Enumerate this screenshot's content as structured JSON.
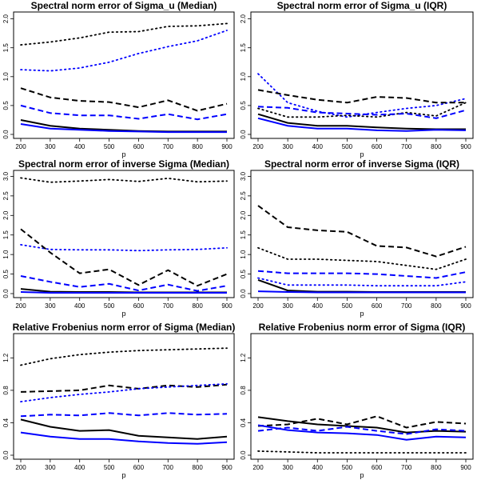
{
  "chart_data": [
    {
      "type": "line",
      "title": "Spectral norm error of Sigma_u (Median)",
      "xlabel": "p",
      "ylabel": "",
      "x": [
        200,
        300,
        400,
        500,
        600,
        700,
        800,
        900
      ],
      "xticks": [
        "200",
        "300",
        "400",
        "500",
        "600",
        "700",
        "800",
        "900"
      ],
      "ylim": [
        0,
        2.05
      ],
      "yticks": [
        "0.0",
        "0.5",
        "1.0",
        "1.5",
        "2.0"
      ],
      "ytick_values": [
        0,
        0.5,
        1.0,
        1.5,
        2.0
      ],
      "grid": false,
      "series": [
        {
          "color": "#000000",
          "dash": "dotted",
          "values": [
            1.55,
            1.6,
            1.67,
            1.77,
            1.78,
            1.87,
            1.88,
            1.92
          ]
        },
        {
          "color": "#0000ff",
          "dash": "dotted",
          "values": [
            1.12,
            1.1,
            1.15,
            1.25,
            1.4,
            1.52,
            1.62,
            1.8
          ]
        },
        {
          "color": "#000000",
          "dash": "dashed",
          "values": [
            0.8,
            0.64,
            0.58,
            0.56,
            0.47,
            0.59,
            0.41,
            0.53
          ]
        },
        {
          "color": "#0000ff",
          "dash": "dashed",
          "values": [
            0.5,
            0.37,
            0.33,
            0.33,
            0.27,
            0.35,
            0.26,
            0.35
          ]
        },
        {
          "color": "#000000",
          "dash": "solid",
          "values": [
            0.25,
            0.15,
            0.1,
            0.08,
            0.06,
            0.05,
            0.05,
            0.05
          ]
        },
        {
          "color": "#0000ff",
          "dash": "solid",
          "values": [
            0.18,
            0.1,
            0.08,
            0.06,
            0.05,
            0.04,
            0.04,
            0.04
          ]
        }
      ]
    },
    {
      "type": "line",
      "title": "Spectral norm error of Sigma_u (IQR)",
      "xlabel": "p",
      "ylabel": "",
      "x": [
        200,
        300,
        400,
        500,
        600,
        700,
        800,
        900
      ],
      "xticks": [
        "200",
        "300",
        "400",
        "500",
        "600",
        "700",
        "800",
        "900"
      ],
      "ylim": [
        0,
        2.05
      ],
      "yticks": [
        "0.0",
        "0.5",
        "1.0",
        "1.5",
        "2.0"
      ],
      "ytick_values": [
        0,
        0.5,
        1.0,
        1.5,
        2.0
      ],
      "grid": false,
      "series": [
        {
          "color": "#0000ff",
          "dash": "dotted",
          "values": [
            1.05,
            0.55,
            0.4,
            0.3,
            0.38,
            0.45,
            0.5,
            0.62
          ]
        },
        {
          "color": "#000000",
          "dash": "dotted",
          "values": [
            0.45,
            0.3,
            0.3,
            0.33,
            0.3,
            0.38,
            0.32,
            0.55
          ]
        },
        {
          "color": "#000000",
          "dash": "dashed",
          "values": [
            0.77,
            0.68,
            0.6,
            0.55,
            0.65,
            0.63,
            0.55,
            0.55
          ]
        },
        {
          "color": "#0000ff",
          "dash": "dashed",
          "values": [
            0.48,
            0.46,
            0.38,
            0.36,
            0.34,
            0.36,
            0.28,
            0.42
          ]
        },
        {
          "color": "#000000",
          "dash": "solid",
          "values": [
            0.35,
            0.2,
            0.15,
            0.15,
            0.12,
            0.1,
            0.09,
            0.09
          ]
        },
        {
          "color": "#0000ff",
          "dash": "solid",
          "values": [
            0.28,
            0.15,
            0.1,
            0.1,
            0.07,
            0.06,
            0.08,
            0.07
          ]
        }
      ]
    },
    {
      "type": "line",
      "title": "Spectral norm error of inverse Sigma (Median)",
      "xlabel": "p",
      "ylabel": "",
      "x": [
        200,
        300,
        400,
        500,
        600,
        700,
        800,
        900
      ],
      "xticks": [
        "200",
        "300",
        "400",
        "500",
        "600",
        "700",
        "800",
        "900"
      ],
      "ylim": [
        0,
        3.05
      ],
      "yticks": [
        "0.0",
        "0.5",
        "1.0",
        "1.5",
        "2.0",
        "2.5",
        "3.0"
      ],
      "ytick_values": [
        0,
        0.5,
        1.0,
        1.5,
        2.0,
        2.5,
        3.0
      ],
      "grid": false,
      "series": [
        {
          "color": "#000000",
          "dash": "dotted",
          "values": [
            2.96,
            2.85,
            2.88,
            2.92,
            2.87,
            2.95,
            2.86,
            2.88
          ]
        },
        {
          "color": "#0000ff",
          "dash": "dotted",
          "values": [
            1.25,
            1.13,
            1.12,
            1.12,
            1.1,
            1.12,
            1.13,
            1.17
          ]
        },
        {
          "color": "#000000",
          "dash": "dashed",
          "values": [
            1.65,
            1.05,
            0.52,
            0.62,
            0.22,
            0.6,
            0.2,
            0.5
          ]
        },
        {
          "color": "#0000ff",
          "dash": "dashed",
          "values": [
            0.45,
            0.3,
            0.17,
            0.25,
            0.08,
            0.23,
            0.07,
            0.2
          ]
        },
        {
          "color": "#000000",
          "dash": "solid",
          "values": [
            0.12,
            0.05,
            0.04,
            0.04,
            0.03,
            0.03,
            0.03,
            0.03
          ]
        },
        {
          "color": "#0000ff",
          "dash": "solid",
          "values": [
            0.04,
            0.02,
            0.02,
            0.02,
            0.02,
            0.02,
            0.02,
            0.02
          ]
        }
      ]
    },
    {
      "type": "line",
      "title": "Spectral norm error of inverse Sigma (IQR)",
      "xlabel": "p",
      "ylabel": "",
      "x": [
        200,
        300,
        400,
        500,
        600,
        700,
        800,
        900
      ],
      "xticks": [
        "200",
        "300",
        "400",
        "500",
        "600",
        "700",
        "800",
        "900"
      ],
      "ylim": [
        0,
        3.05
      ],
      "yticks": [
        "0.0",
        "0.5",
        "1.0",
        "1.5",
        "2.0",
        "2.5",
        "3.0"
      ],
      "ytick_values": [
        0,
        0.5,
        1.0,
        1.5,
        2.0,
        2.5,
        3.0
      ],
      "grid": false,
      "series": [
        {
          "color": "#000000",
          "dash": "dashed",
          "values": [
            2.25,
            1.7,
            1.62,
            1.58,
            1.22,
            1.18,
            0.95,
            1.2
          ]
        },
        {
          "color": "#000000",
          "dash": "dotted",
          "values": [
            1.17,
            0.88,
            0.88,
            0.85,
            0.82,
            0.72,
            0.62,
            0.88
          ]
        },
        {
          "color": "#0000ff",
          "dash": "dashed",
          "values": [
            0.58,
            0.52,
            0.52,
            0.52,
            0.5,
            0.45,
            0.4,
            0.55
          ]
        },
        {
          "color": "#0000ff",
          "dash": "dotted",
          "values": [
            0.4,
            0.22,
            0.22,
            0.22,
            0.2,
            0.2,
            0.2,
            0.3
          ]
        },
        {
          "color": "#000000",
          "dash": "solid",
          "values": [
            0.35,
            0.08,
            0.05,
            0.05,
            0.04,
            0.04,
            0.04,
            0.04
          ]
        },
        {
          "color": "#0000ff",
          "dash": "solid",
          "values": [
            0.06,
            0.04,
            0.03,
            0.03,
            0.03,
            0.03,
            0.03,
            0.03
          ]
        }
      ]
    },
    {
      "type": "line",
      "title": "Relative Frobenius norm error of Sigma (Median)",
      "xlabel": "p",
      "ylabel": "",
      "x": [
        200,
        300,
        400,
        500,
        600,
        700,
        800,
        900
      ],
      "xticks": [
        "200",
        "300",
        "400",
        "500",
        "600",
        "700",
        "800",
        "900"
      ],
      "ylim": [
        0,
        1.45
      ],
      "yticks": [
        "0.0",
        "0.4",
        "0.8",
        "1.2"
      ],
      "ytick_values": [
        0,
        0.4,
        0.8,
        1.2
      ],
      "grid": false,
      "series": [
        {
          "color": "#000000",
          "dash": "dotted",
          "values": [
            1.11,
            1.19,
            1.24,
            1.27,
            1.29,
            1.3,
            1.31,
            1.32
          ]
        },
        {
          "color": "#000000",
          "dash": "dashed",
          "values": [
            0.78,
            0.79,
            0.8,
            0.86,
            0.82,
            0.86,
            0.84,
            0.87
          ]
        },
        {
          "color": "#0000ff",
          "dash": "dotted",
          "values": [
            0.66,
            0.71,
            0.75,
            0.78,
            0.82,
            0.84,
            0.86,
            0.88
          ]
        },
        {
          "color": "#0000ff",
          "dash": "dashed",
          "values": [
            0.48,
            0.5,
            0.49,
            0.52,
            0.49,
            0.52,
            0.5,
            0.51
          ]
        },
        {
          "color": "#000000",
          "dash": "solid",
          "values": [
            0.44,
            0.35,
            0.3,
            0.31,
            0.24,
            0.22,
            0.2,
            0.23
          ]
        },
        {
          "color": "#0000ff",
          "dash": "solid",
          "values": [
            0.28,
            0.23,
            0.2,
            0.2,
            0.17,
            0.15,
            0.14,
            0.16
          ]
        }
      ]
    },
    {
      "type": "line",
      "title": "Relative Frobenius norm error of Sigma (IQR)",
      "xlabel": "p",
      "ylabel": "",
      "x": [
        200,
        300,
        400,
        500,
        600,
        700,
        800,
        900
      ],
      "xticks": [
        "200",
        "300",
        "400",
        "500",
        "600",
        "700",
        "800",
        "900"
      ],
      "ylim": [
        0,
        1.45
      ],
      "yticks": [
        "0.0",
        "0.4",
        "0.8",
        "1.2"
      ],
      "ytick_values": [
        0,
        0.4,
        0.8,
        1.2
      ],
      "grid": false,
      "series": [
        {
          "color": "#000000",
          "dash": "solid",
          "values": [
            0.47,
            0.42,
            0.38,
            0.36,
            0.34,
            0.28,
            0.3,
            0.29
          ]
        },
        {
          "color": "#000000",
          "dash": "dashed",
          "values": [
            0.36,
            0.38,
            0.45,
            0.38,
            0.48,
            0.34,
            0.41,
            0.39
          ]
        },
        {
          "color": "#0000ff",
          "dash": "dashed",
          "values": [
            0.3,
            0.34,
            0.3,
            0.35,
            0.3,
            0.26,
            0.32,
            0.3
          ]
        },
        {
          "color": "#0000ff",
          "dash": "solid",
          "values": [
            0.37,
            0.31,
            0.28,
            0.27,
            0.25,
            0.19,
            0.23,
            0.22
          ]
        },
        {
          "color": "#000000",
          "dash": "dotted",
          "values": [
            0.05,
            0.04,
            0.03,
            0.03,
            0.03,
            0.03,
            0.03,
            0.03
          ]
        }
      ]
    }
  ]
}
